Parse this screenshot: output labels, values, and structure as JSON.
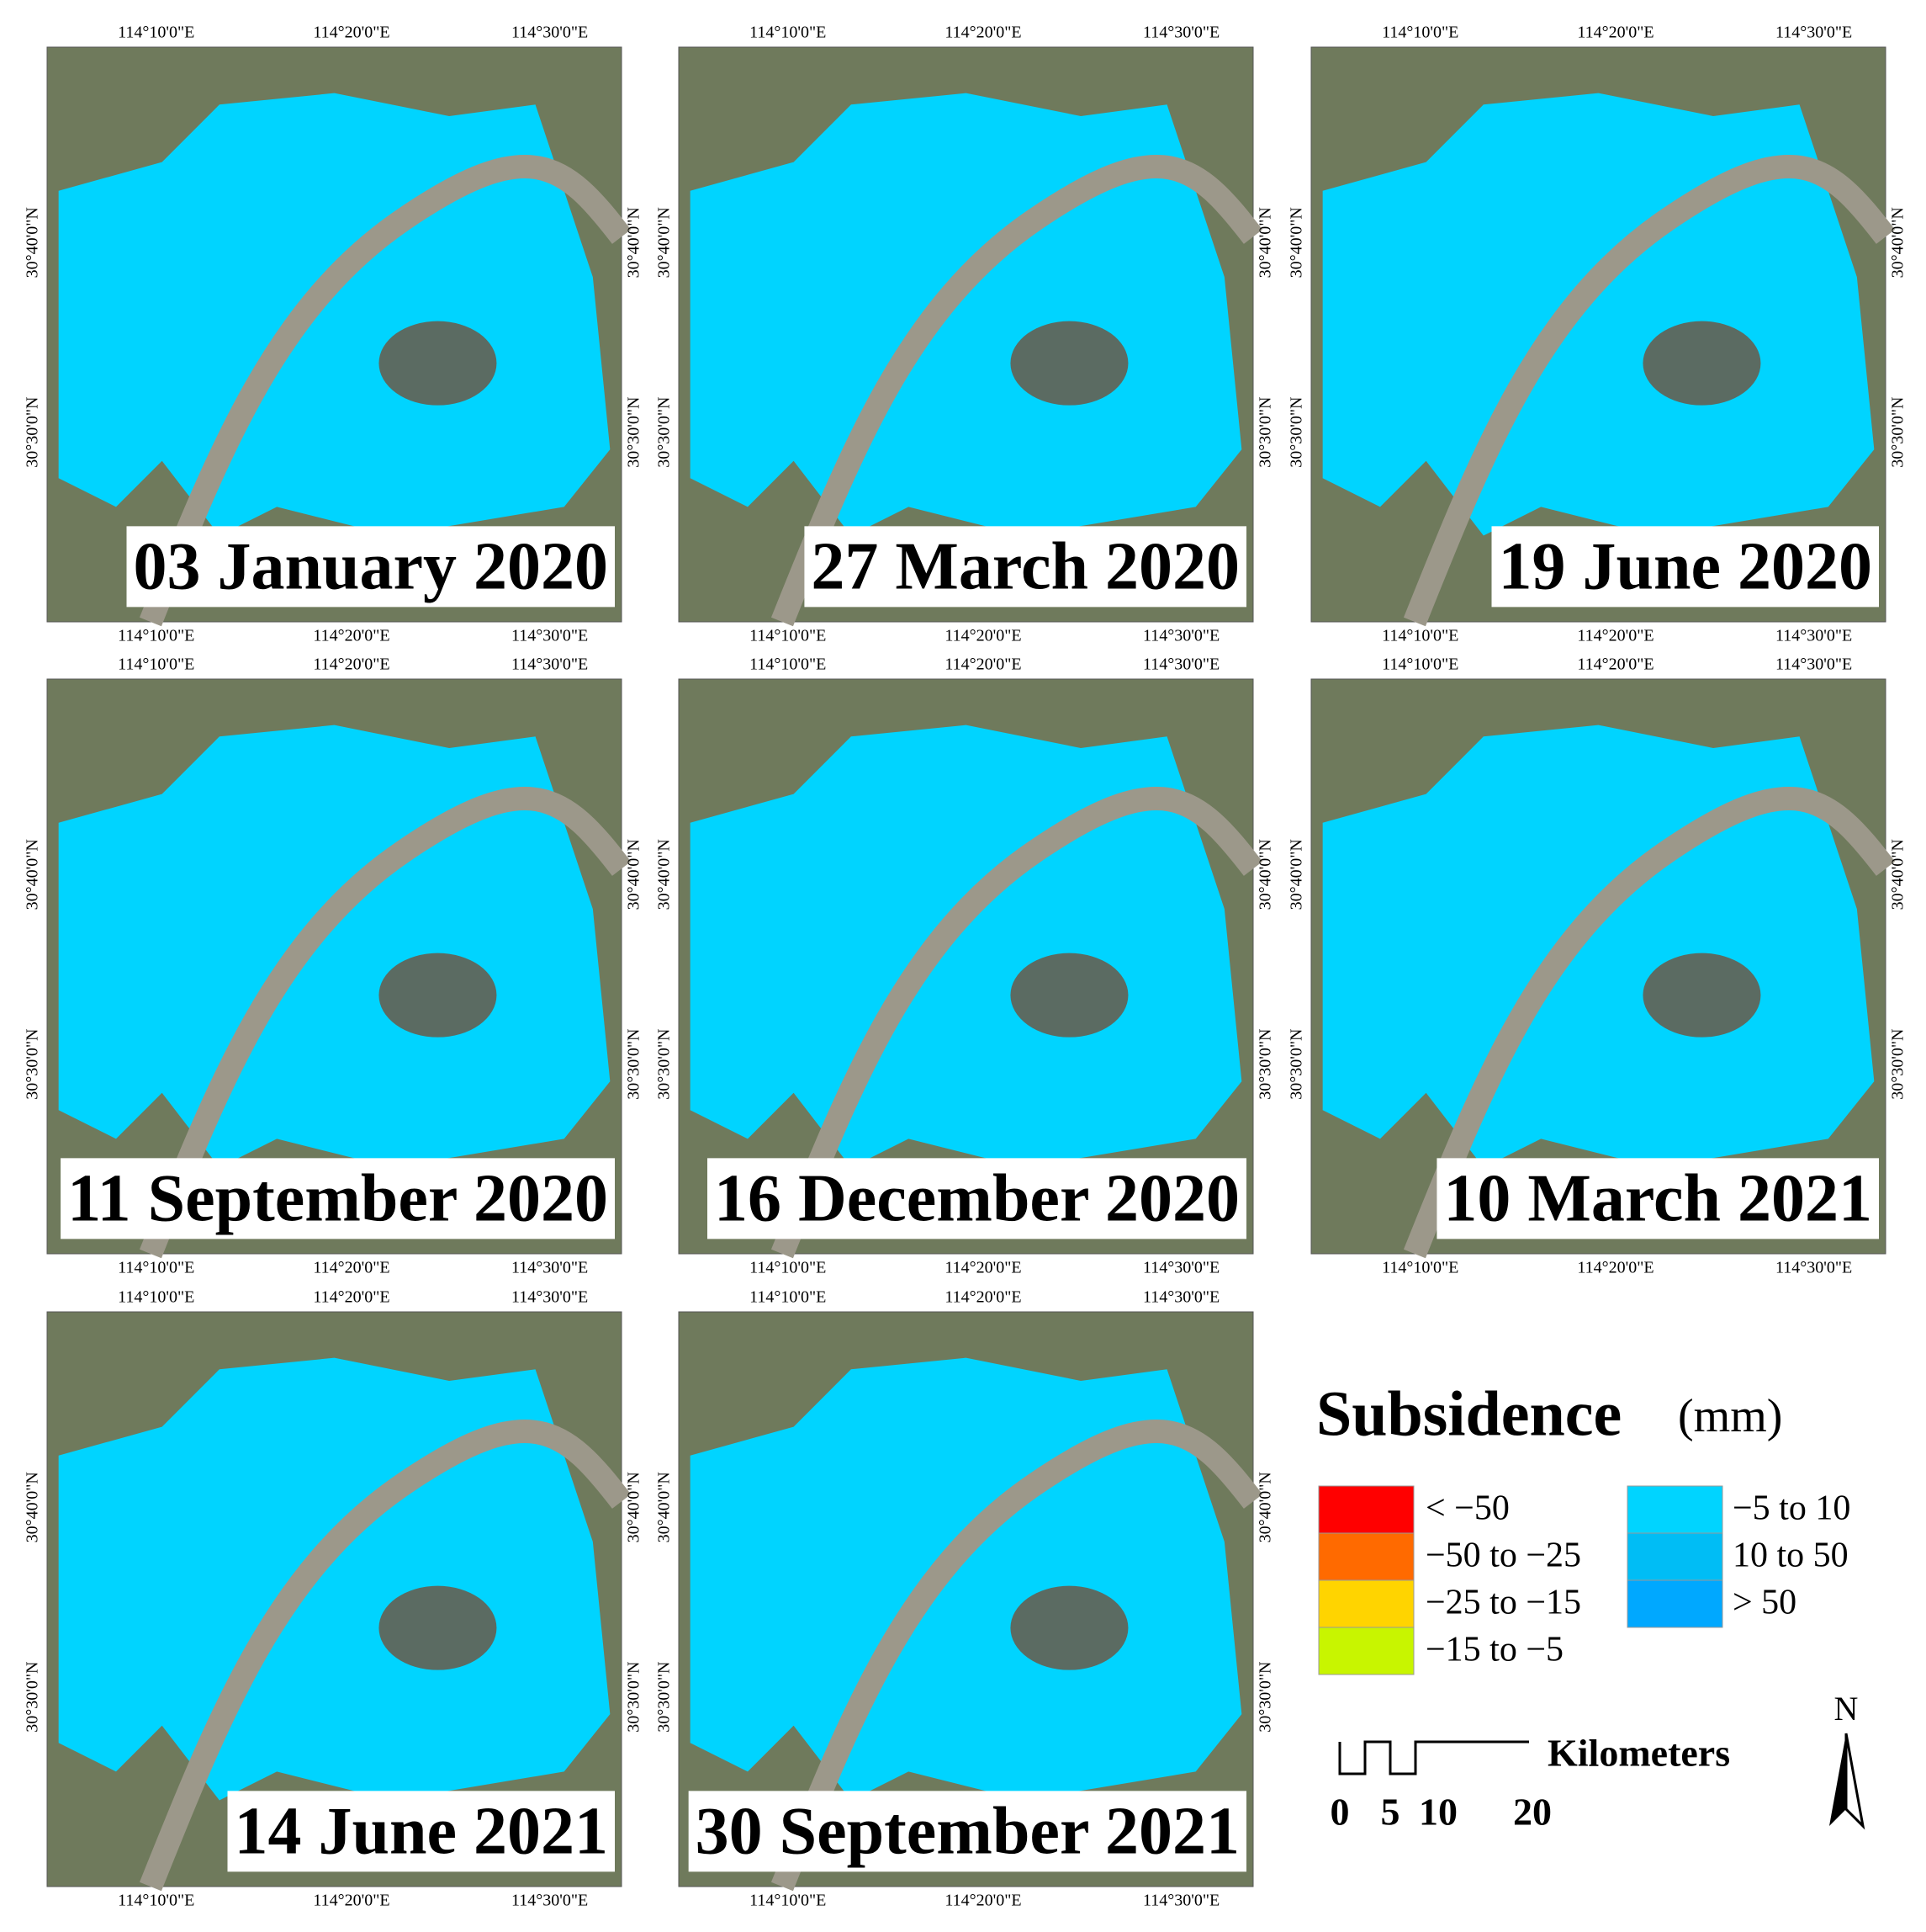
{
  "panels": [
    {
      "date": "03 January 2020"
    },
    {
      "date": "27 March 2020"
    },
    {
      "date": "19 June 2020"
    },
    {
      "date": "11 September 2020"
    },
    {
      "date": "16 December 2020"
    },
    {
      "date": "10 March 2021"
    },
    {
      "date": "14 June 2021"
    },
    {
      "date": "30 September 2021"
    }
  ],
  "x_ticks": [
    "114°10'0\"E",
    "114°20'0\"E",
    "114°30'0\"E"
  ],
  "y_ticks": [
    "30°40'0\"N",
    "30°30'0\"N"
  ],
  "legend": {
    "title": "Subsidence",
    "unit": "(mm)",
    "classes": [
      {
        "label": "< −50",
        "color": "#ff0000"
      },
      {
        "label": "−50  to −25",
        "color": "#ff6a00"
      },
      {
        "label": "−25  to −15",
        "color": "#ffd400"
      },
      {
        "label": "−15  to −5",
        "color": "#c8f500"
      },
      {
        "label": "−5  to 10",
        "color": "#00d4ff"
      },
      {
        "label": "10 to 50",
        "color": "#00bdf5"
      },
      {
        "label": "> 50",
        "color": "#00a8ff"
      }
    ]
  },
  "scale_bar": {
    "unit": "Kilometers",
    "labels": [
      "0",
      "5",
      "10",
      "20"
    ]
  },
  "north": "N"
}
